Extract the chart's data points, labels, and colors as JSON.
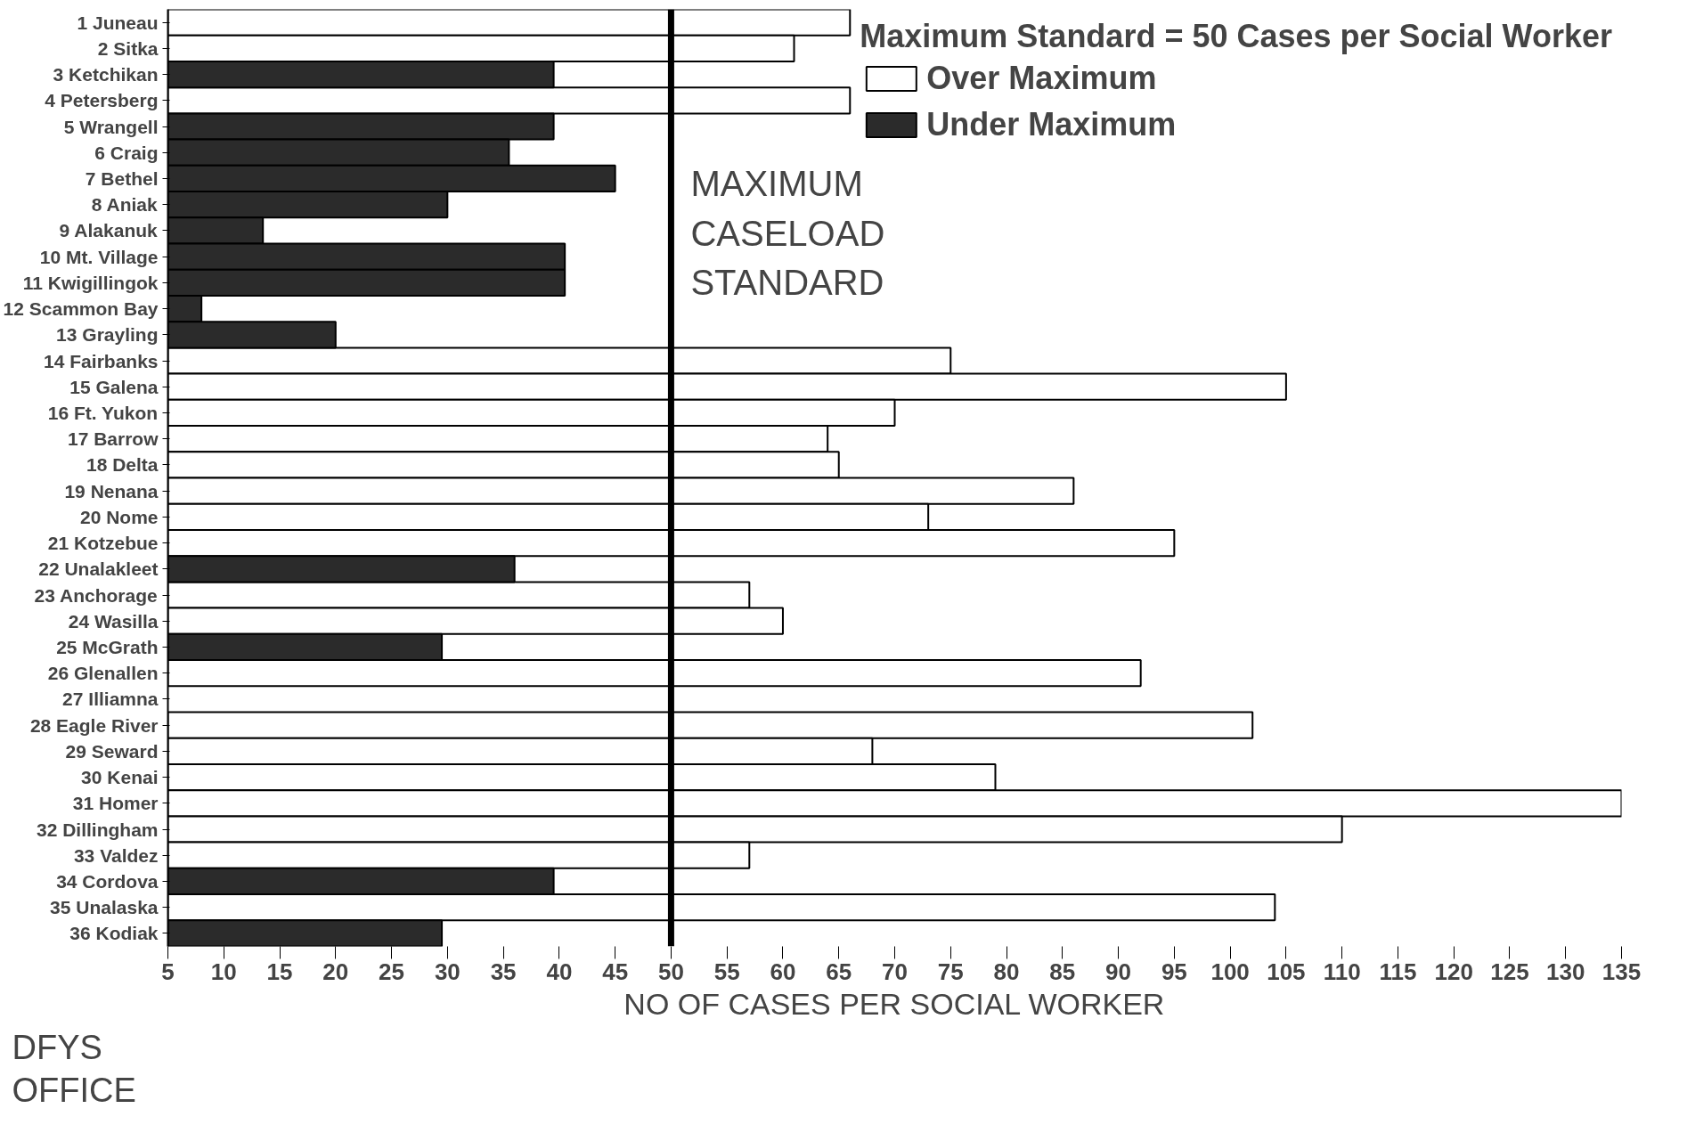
{
  "chart_data": {
    "type": "bar",
    "orientation": "horizontal",
    "xlabel": "NO OF CASES PER SOCIAL WORKER",
    "ylabel": "DFYS OFFICE",
    "legend_title": "Maximum Standard = 50 Cases per Social Worker",
    "categories": [
      "1 Juneau",
      "2 Sitka",
      "3 Ketchikan",
      "4 Petersberg",
      "5 Wrangell",
      "6 Craig",
      "7 Bethel",
      "8 Aniak",
      "9 Alakanuk",
      "10 Mt. Village",
      "11 Kwigillingok",
      "12 Scammon Bay",
      "13 Grayling",
      "14 Fairbanks",
      "15 Galena",
      "16 Ft. Yukon",
      "17 Barrow",
      "18 Delta",
      "19 Nenana",
      "20 Nome",
      "21 Kotzebue",
      "22 Unalakleet",
      "23 Anchorage",
      "24 Wasilla",
      "25 McGrath",
      "26 Glenallen",
      "27 Illiamna",
      "28 Eagle River",
      "29 Seward",
      "30 Kenai",
      "31 Homer",
      "32 Dillingham",
      "33 Valdez",
      "34 Cordova",
      "35 Unalaska",
      "36 Kodiak"
    ],
    "series": [
      {
        "name": "Over Maximum",
        "color": "#ffffff",
        "values": [
          66,
          61,
          null,
          66,
          null,
          null,
          null,
          null,
          null,
          null,
          null,
          null,
          null,
          75,
          105,
          70,
          64,
          65,
          86,
          73,
          95,
          null,
          57,
          60,
          null,
          92,
          null,
          102,
          68,
          79,
          135,
          110,
          57,
          null,
          104,
          null
        ]
      },
      {
        "name": "Under Maximum",
        "color": "#2b2b2b",
        "values": [
          null,
          null,
          39.5,
          null,
          39.5,
          35.5,
          45,
          30,
          13.5,
          40.5,
          40.5,
          8,
          20,
          null,
          null,
          null,
          null,
          null,
          null,
          null,
          null,
          36,
          null,
          null,
          29.5,
          null,
          null,
          null,
          null,
          null,
          null,
          null,
          null,
          39.5,
          null,
          29.5
        ]
      }
    ],
    "xlim": [
      5,
      135
    ],
    "xticks": [
      5,
      10,
      15,
      20,
      25,
      30,
      35,
      40,
      45,
      50,
      55,
      60,
      65,
      70,
      75,
      80,
      85,
      90,
      95,
      100,
      105,
      110,
      115,
      120,
      125,
      130,
      135
    ],
    "ref_lines": [
      {
        "axis": "x",
        "value": 50,
        "label": "MAXIMUM CASELOAD STANDARD",
        "color": "#000000"
      }
    ],
    "legend": "top right",
    "grid": false
  }
}
